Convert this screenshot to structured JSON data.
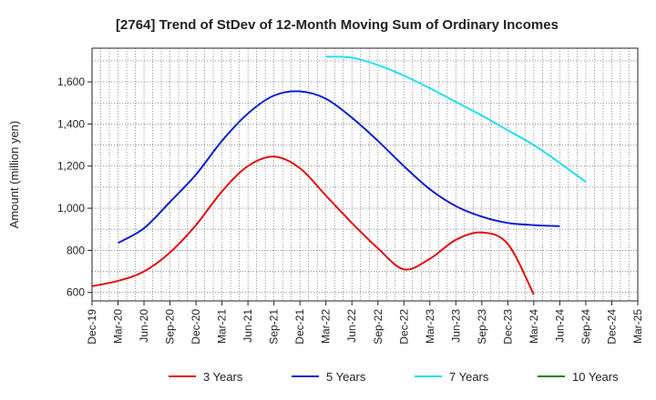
{
  "chart_data": {
    "type": "line",
    "title": "[2764]  Trend of StDev of 12-Month Moving Sum of Ordinary Incomes",
    "xlabel": "",
    "ylabel": "Amount (million yen)",
    "x_tick_labels": [
      "Dec-19",
      "Mar-20",
      "Jun-20",
      "Sep-20",
      "Dec-20",
      "Mar-21",
      "Jun-21",
      "Sep-21",
      "Dec-21",
      "Mar-22",
      "Jun-22",
      "Sep-22",
      "Dec-22",
      "Mar-23",
      "Jun-23",
      "Sep-23",
      "Dec-23",
      "Mar-24",
      "Jun-24",
      "Sep-24",
      "Dec-24",
      "Mar-25"
    ],
    "y_ticks": [
      600,
      800,
      1000,
      1200,
      1400,
      1600
    ],
    "y_tick_labels": [
      "600",
      "800",
      "1,000",
      "1,200",
      "1,400",
      "1,600"
    ],
    "ylim": [
      560,
      1760
    ],
    "grid": true,
    "legend_position": "bottom",
    "series": [
      {
        "name": "3 Years",
        "color": "#e01010",
        "start_index": 0,
        "values": [
          630,
          655,
          700,
          790,
          920,
          1080,
          1200,
          1245,
          1190,
          1060,
          930,
          810,
          710,
          760,
          850,
          885,
          830,
          590
        ]
      },
      {
        "name": "5 Years",
        "color": "#1020cc",
        "start_index": 1,
        "values": [
          835,
          905,
          1030,
          1160,
          1320,
          1450,
          1535,
          1555,
          1520,
          1430,
          1320,
          1200,
          1090,
          1010,
          960,
          930,
          920,
          915
        ]
      },
      {
        "name": "7 Years",
        "color": "#20e0f0",
        "start_index": 9,
        "values": [
          1720,
          1715,
          1680,
          1630,
          1570,
          1505,
          1440,
          1370,
          1300,
          1215,
          1125
        ]
      },
      {
        "name": "10 Years",
        "color": "#208020",
        "start_index": 0,
        "values": []
      }
    ]
  }
}
